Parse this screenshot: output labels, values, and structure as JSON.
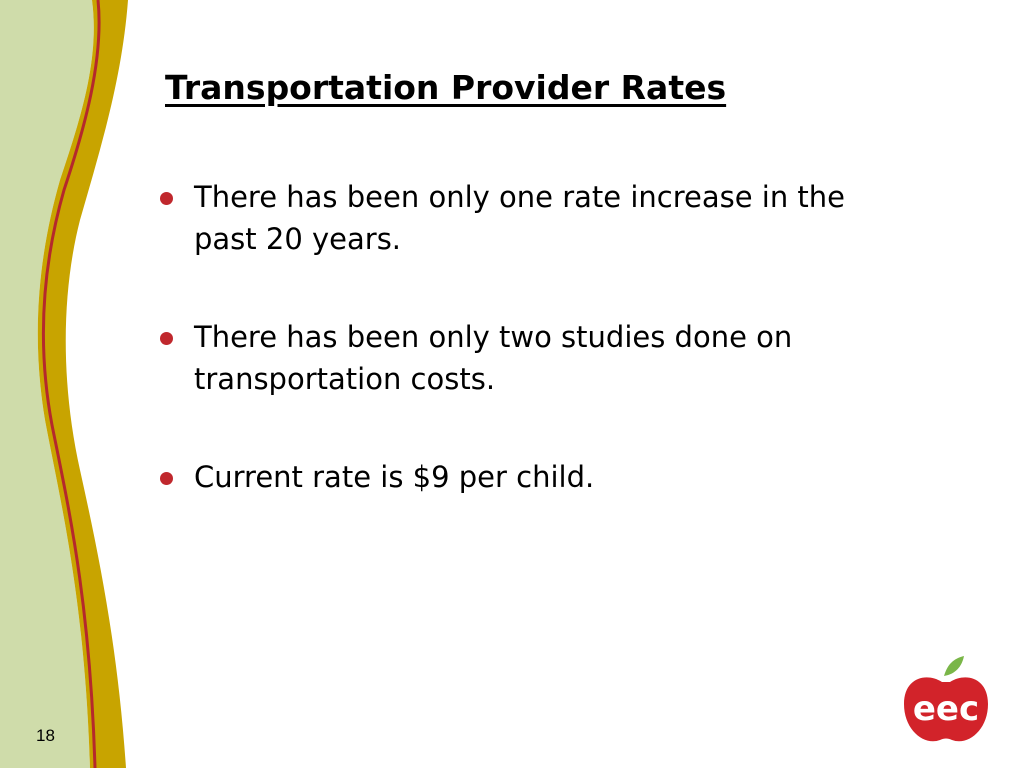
{
  "slide": {
    "title": "Transportation Provider Rates",
    "bullets": [
      "There has been only one rate increase in the past 20 years.",
      "There has been only two studies done on transportation costs.",
      "Current rate is $9 per child."
    ],
    "page_number": "18",
    "logo": {
      "text": "eec"
    }
  }
}
